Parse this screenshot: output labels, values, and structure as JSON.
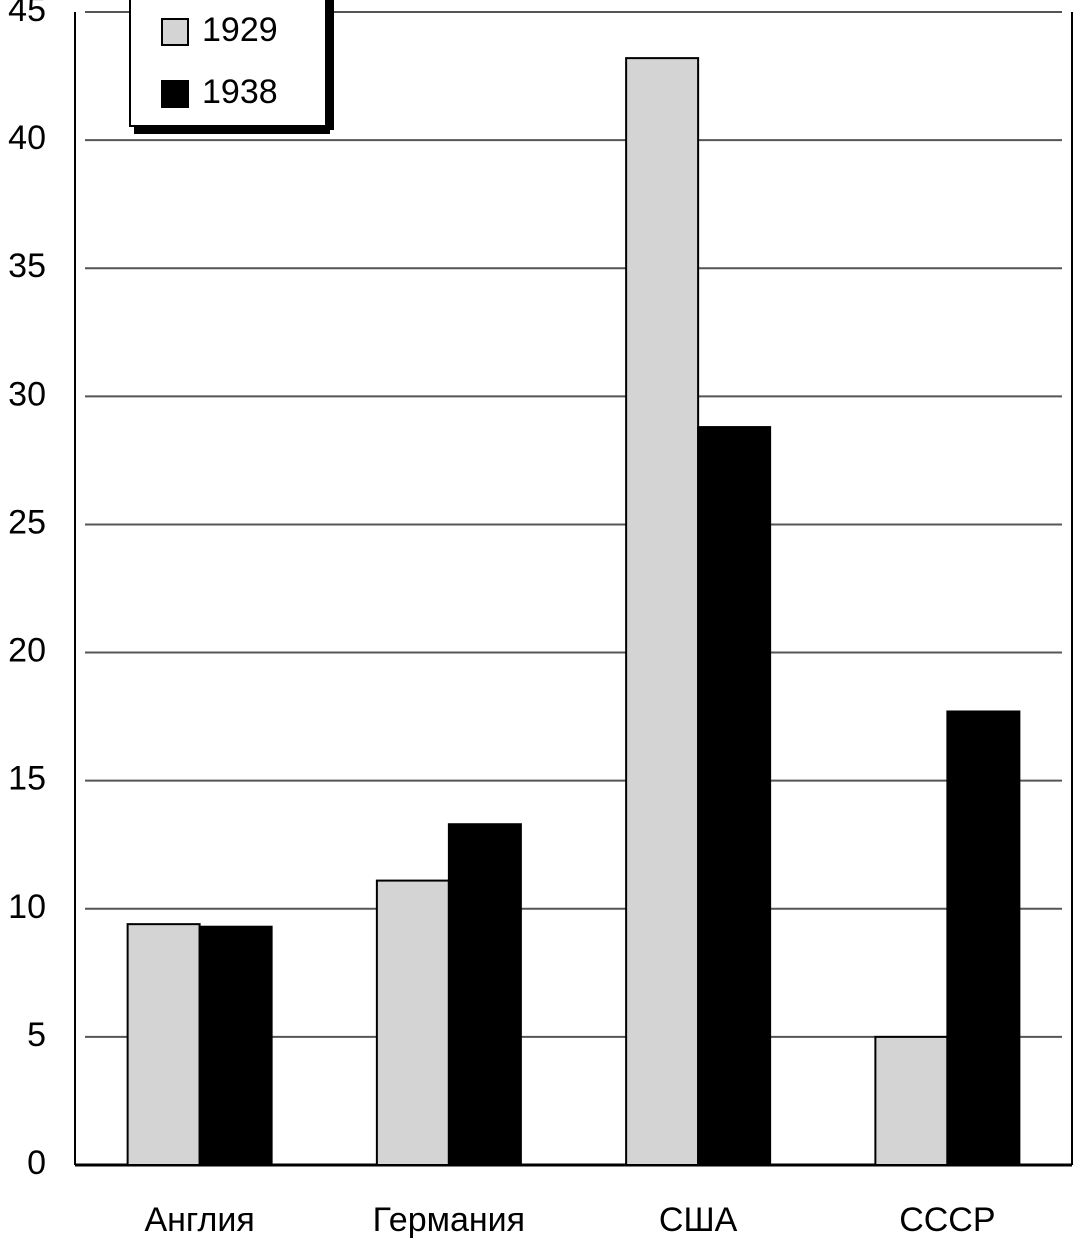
{
  "chart_data": {
    "type": "bar",
    "categories": [
      "Англия",
      "Германия",
      "США",
      "СССР"
    ],
    "series": [
      {
        "name": "1929",
        "color": "#d4d4d4",
        "values": [
          9.4,
          11.1,
          43.2,
          5.0
        ]
      },
      {
        "name": "1938",
        "color": "#000000",
        "values": [
          9.3,
          13.3,
          28.8,
          17.7
        ]
      }
    ],
    "ylim": [
      0,
      45
    ],
    "yticks": [
      0,
      5,
      10,
      15,
      20,
      25,
      30,
      35,
      40,
      45
    ],
    "grid": true,
    "legend": "top-left"
  }
}
